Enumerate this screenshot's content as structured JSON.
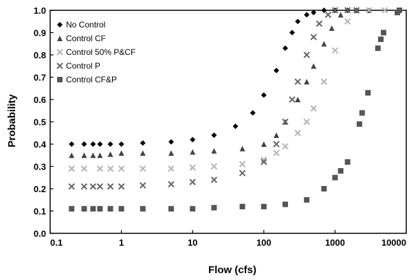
{
  "chart_data": {
    "type": "scatter",
    "title": "",
    "xlabel": "Flow (cfs)",
    "ylabel": "Probability",
    "x_scale": "log",
    "xlim": [
      0.1,
      10000
    ],
    "ylim": [
      0.0,
      1.0
    ],
    "x_ticks": [
      "0.1",
      "1",
      "10",
      "100",
      "1000",
      "10000"
    ],
    "y_ticks": [
      "0.0",
      "0.1",
      "0.2",
      "0.3",
      "0.4",
      "0.5",
      "0.6",
      "0.7",
      "0.8",
      "0.9",
      "1.0"
    ],
    "grid": false,
    "legend_position": "top-left",
    "series": [
      {
        "name": "No Control",
        "marker": "diamond",
        "color": "#000000",
        "x": [
          0.2,
          0.3,
          0.4,
          0.5,
          0.7,
          1,
          2,
          5,
          10,
          20,
          40,
          70,
          100,
          150,
          200,
          250,
          300,
          400,
          500,
          700,
          1000,
          1500,
          2000
        ],
        "y": [
          0.4,
          0.4,
          0.4,
          0.4,
          0.4,
          0.4,
          0.405,
          0.41,
          0.42,
          0.44,
          0.48,
          0.54,
          0.62,
          0.73,
          0.83,
          0.9,
          0.95,
          0.98,
          0.99,
          1.0,
          1.0,
          1.0,
          1.0
        ]
      },
      {
        "name": "Control CF",
        "marker": "triangle",
        "color": "#444444",
        "x": [
          0.2,
          0.3,
          0.4,
          0.5,
          0.7,
          1,
          2,
          5,
          10,
          20,
          50,
          100,
          150,
          200,
          300,
          400,
          500,
          700,
          900,
          1200,
          2000,
          3000
        ],
        "y": [
          0.35,
          0.35,
          0.35,
          0.35,
          0.355,
          0.36,
          0.36,
          0.36,
          0.365,
          0.37,
          0.38,
          0.4,
          0.44,
          0.5,
          0.6,
          0.68,
          0.75,
          0.85,
          0.92,
          0.98,
          1.0,
          1.0
        ]
      },
      {
        "name": "Control 50% P&CF",
        "marker": "x",
        "color": "#b5b5b5",
        "x": [
          0.2,
          0.3,
          0.5,
          0.7,
          1,
          2,
          5,
          10,
          20,
          50,
          100,
          150,
          200,
          300,
          400,
          500,
          700,
          1000,
          1500,
          2000,
          3000,
          5000
        ],
        "y": [
          0.29,
          0.29,
          0.29,
          0.29,
          0.29,
          0.29,
          0.29,
          0.295,
          0.3,
          0.31,
          0.33,
          0.36,
          0.39,
          0.45,
          0.5,
          0.56,
          0.68,
          0.82,
          0.95,
          1.0,
          1.0,
          1.0
        ]
      },
      {
        "name": "Control P",
        "marker": "x",
        "color": "#666666",
        "x": [
          0.2,
          0.3,
          0.4,
          0.5,
          0.7,
          1,
          2,
          5,
          10,
          20,
          50,
          100,
          150,
          200,
          250,
          300,
          400,
          500,
          600,
          800,
          1000,
          1500,
          2000
        ],
        "y": [
          0.21,
          0.21,
          0.21,
          0.21,
          0.21,
          0.21,
          0.215,
          0.22,
          0.23,
          0.24,
          0.27,
          0.32,
          0.4,
          0.5,
          0.6,
          0.68,
          0.8,
          0.88,
          0.94,
          0.98,
          1.0,
          1.0,
          1.0
        ]
      },
      {
        "name": "Control CF&P",
        "marker": "square",
        "color": "#555555",
        "x": [
          0.2,
          0.3,
          0.4,
          0.5,
          0.7,
          1,
          2,
          5,
          10,
          20,
          50,
          100,
          200,
          400,
          700,
          1000,
          1200,
          1500,
          2200,
          2400,
          2900,
          4000,
          4400,
          4800,
          7500,
          8000
        ],
        "y": [
          0.11,
          0.11,
          0.11,
          0.11,
          0.11,
          0.11,
          0.11,
          0.11,
          0.11,
          0.115,
          0.12,
          0.12,
          0.13,
          0.15,
          0.2,
          0.25,
          0.28,
          0.32,
          0.49,
          0.54,
          0.63,
          0.83,
          0.87,
          0.9,
          0.99,
          1.0
        ]
      }
    ]
  }
}
